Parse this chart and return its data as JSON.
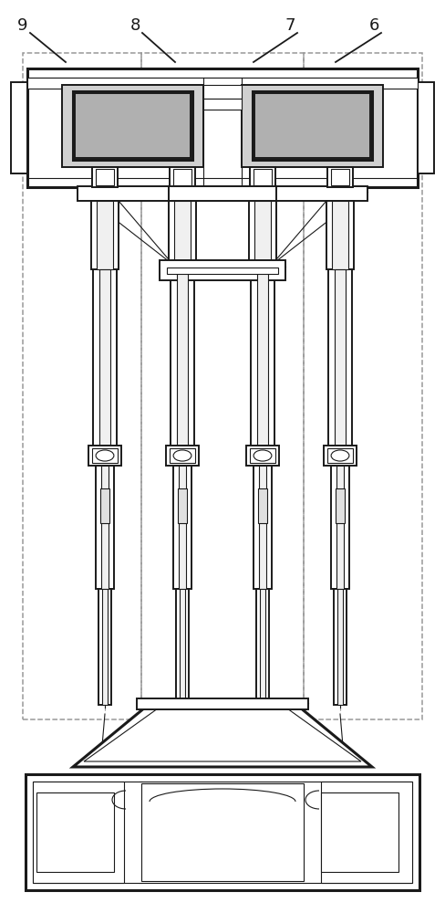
{
  "background_color": "#ffffff",
  "line_color": "#1a1a1a",
  "dashed_color": "#999999",
  "label_color": "#1a1a1a",
  "labels": [
    "9",
    "8",
    "7",
    "6"
  ],
  "label_fontsize": 13,
  "fig_width": 4.88,
  "fig_height": 10.0,
  "dpi": 100,
  "lw_thick": 2.2,
  "lw_main": 1.4,
  "lw_thin": 0.8,
  "lw_dash": 1.1
}
